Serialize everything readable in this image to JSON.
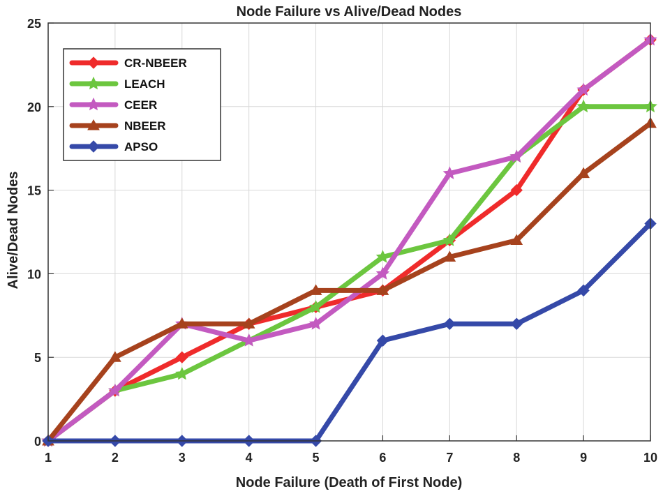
{
  "chart_data": {
    "type": "line",
    "title": "Node Failure vs Alive/Dead Nodes",
    "xlabel": "Node Failure (Death of First Node)",
    "ylabel": "Alive/Dead Nodes",
    "x": [
      1,
      2,
      3,
      4,
      5,
      6,
      7,
      8,
      9,
      10
    ],
    "xlim": [
      1,
      10
    ],
    "ylim": [
      0,
      25
    ],
    "xticks": [
      "1",
      "2",
      "3",
      "4",
      "5",
      "6",
      "7",
      "8",
      "9",
      "10"
    ],
    "yticks": [
      "0",
      "5",
      "10",
      "15",
      "20",
      "25"
    ],
    "grid": true,
    "legend_position": "top-left",
    "series": [
      {
        "name": "CR-NBEER",
        "color": "#ef2b2b",
        "marker": "diamond",
        "values": [
          0,
          3,
          5,
          7,
          8,
          9,
          12,
          15,
          21,
          24
        ]
      },
      {
        "name": "LEACH",
        "color": "#6cc63f",
        "marker": "star",
        "values": [
          0,
          3,
          4,
          6,
          8,
          11,
          12,
          17,
          20,
          20
        ]
      },
      {
        "name": "CEER",
        "color": "#c35ac0",
        "marker": "star",
        "values": [
          0,
          3,
          7,
          6,
          7,
          10,
          16,
          17,
          21,
          24
        ]
      },
      {
        "name": "NBEER",
        "color": "#a6421d",
        "marker": "triangle",
        "values": [
          0,
          5,
          7,
          7,
          9,
          9,
          11,
          12,
          16,
          19
        ]
      },
      {
        "name": "APSO",
        "color": "#3549a8",
        "marker": "diamond",
        "values": [
          0,
          0,
          0,
          0,
          0,
          6,
          7,
          7,
          9,
          13
        ]
      }
    ]
  }
}
